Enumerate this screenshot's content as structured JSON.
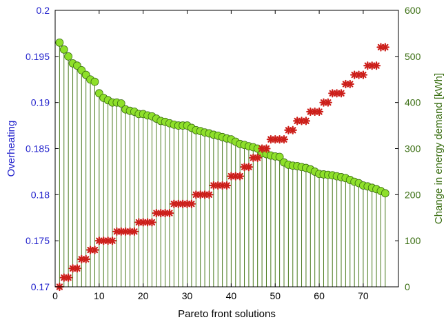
{
  "chart_data": {
    "type": "scatter",
    "xlabel": "Pareto front solutions",
    "ylabel_left": "Overheating",
    "ylabel_right": "Change in energy demand [kWh]",
    "xlim": [
      0,
      78
    ],
    "ylim_left": [
      0.17,
      0.2
    ],
    "ylim_right": [
      0,
      600
    ],
    "x_ticks": [
      "0",
      "10",
      "20",
      "30",
      "40",
      "50",
      "60",
      "70"
    ],
    "y_left_ticks": [
      "0.17",
      "0.175",
      "0.18",
      "0.185",
      "0.19",
      "0.195",
      "0.2"
    ],
    "y_right_ticks": [
      "0",
      "100",
      "200",
      "300",
      "400",
      "500",
      "600"
    ],
    "grid": false,
    "colors": {
      "left_axis": "#2222cc",
      "right_axis": "#3a6e12",
      "stem": "#4a7a1e",
      "circle_fill": "#8ee02a",
      "circle_stroke": "#3a6e12",
      "star": "#cc1f1a"
    },
    "series": [
      {
        "axis": "left",
        "marker": "star",
        "x": [
          1,
          2,
          3,
          4,
          5,
          6,
          7,
          8,
          9,
          10,
          11,
          12,
          13,
          14,
          15,
          16,
          17,
          18,
          19,
          20,
          21,
          22,
          23,
          24,
          25,
          26,
          27,
          28,
          29,
          30,
          31,
          32,
          33,
          34,
          35,
          36,
          37,
          38,
          39,
          40,
          41,
          42,
          43,
          44,
          45,
          46,
          47,
          48,
          49,
          50,
          51,
          52,
          53,
          54,
          55,
          56,
          57,
          58,
          59,
          60,
          61,
          62,
          63,
          64,
          65,
          66,
          67,
          68,
          69,
          70,
          71,
          72,
          73,
          74,
          75
        ],
        "values": [
          0.17,
          0.171,
          0.171,
          0.172,
          0.172,
          0.173,
          0.173,
          0.174,
          0.174,
          0.175,
          0.175,
          0.175,
          0.175,
          0.176,
          0.176,
          0.176,
          0.176,
          0.176,
          0.177,
          0.177,
          0.177,
          0.177,
          0.178,
          0.178,
          0.178,
          0.178,
          0.179,
          0.179,
          0.179,
          0.179,
          0.179,
          0.18,
          0.18,
          0.18,
          0.18,
          0.181,
          0.181,
          0.181,
          0.181,
          0.182,
          0.182,
          0.182,
          0.183,
          0.183,
          0.184,
          0.184,
          0.185,
          0.185,
          0.186,
          0.186,
          0.186,
          0.186,
          0.187,
          0.187,
          0.188,
          0.188,
          0.188,
          0.189,
          0.189,
          0.189,
          0.19,
          0.19,
          0.191,
          0.191,
          0.191,
          0.192,
          0.192,
          0.193,
          0.193,
          0.193,
          0.194,
          0.194,
          0.194,
          0.196,
          0.196
        ]
      },
      {
        "axis": "right",
        "marker": "stem-circle",
        "x": [
          1,
          2,
          3,
          4,
          5,
          6,
          7,
          8,
          9,
          10,
          11,
          12,
          13,
          14,
          15,
          16,
          17,
          18,
          19,
          20,
          21,
          22,
          23,
          24,
          25,
          26,
          27,
          28,
          29,
          30,
          31,
          32,
          33,
          34,
          35,
          36,
          37,
          38,
          39,
          40,
          41,
          42,
          43,
          44,
          45,
          46,
          47,
          48,
          49,
          50,
          51,
          52,
          53,
          54,
          55,
          56,
          57,
          58,
          59,
          60,
          61,
          62,
          63,
          64,
          65,
          66,
          67,
          68,
          69,
          70,
          71,
          72,
          73,
          74,
          75
        ],
        "values": [
          530,
          515,
          500,
          485,
          480,
          470,
          460,
          450,
          445,
          420,
          410,
          405,
          400,
          400,
          398,
          385,
          382,
          380,
          375,
          375,
          372,
          370,
          365,
          360,
          358,
          355,
          352,
          350,
          350,
          350,
          345,
          340,
          338,
          335,
          333,
          330,
          328,
          325,
          322,
          320,
          315,
          310,
          308,
          305,
          303,
          300,
          290,
          288,
          285,
          283,
          282,
          270,
          265,
          263,
          262,
          260,
          258,
          255,
          250,
          245,
          244,
          243,
          242,
          240,
          238,
          236,
          232,
          228,
          225,
          220,
          218,
          215,
          212,
          208,
          203
        ]
      }
    ]
  }
}
